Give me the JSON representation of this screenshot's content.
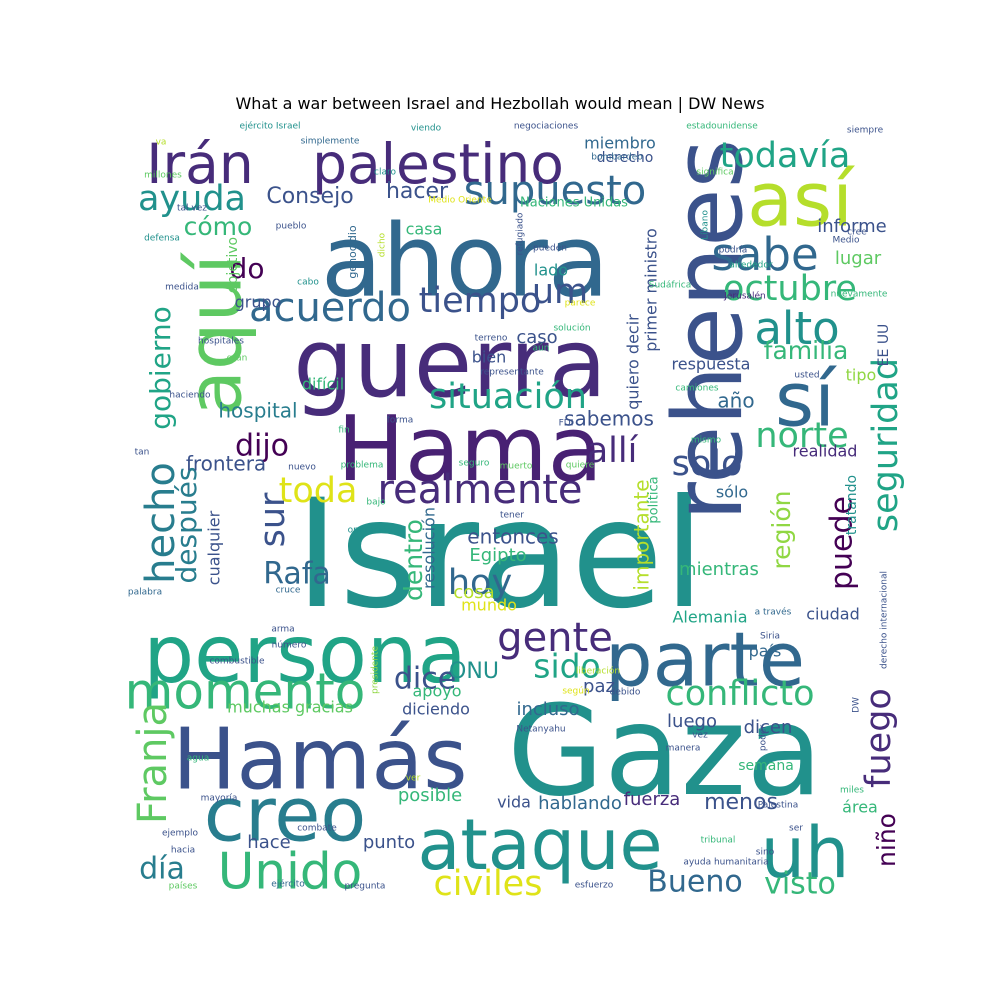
{
  "figure": {
    "title": "What a war between Israel and Hezbollah would mean | DW News"
  },
  "palette": {
    "dark_purple": "#472c7a",
    "indigo": "#3b528b",
    "steel_blue": "#31688e",
    "teal_blue": "#287d8e",
    "teal": "#21918c",
    "sea_green": "#20a486",
    "green": "#35b779",
    "light_green": "#5ec962",
    "lime": "#90d743",
    "yellow_green": "#b5de2b",
    "yellow": "#dfe318",
    "deep_purple": "#440154",
    "purple": "#482173"
  },
  "words": [
    {
      "text": "Israel",
      "color": "#21918c"
    },
    {
      "text": "Gaza",
      "color": "#21918c"
    },
    {
      "text": "ahora",
      "color": "#31688e"
    },
    {
      "text": "guerra",
      "color": "#472c7a"
    },
    {
      "text": "Hama",
      "color": "#482173"
    },
    {
      "text": "rehenes",
      "color": "#3b528b"
    },
    {
      "text": "persona",
      "color": "#20a486"
    },
    {
      "text": "Hamás",
      "color": "#3b528b"
    },
    {
      "text": "parte",
      "color": "#31688e"
    },
    {
      "text": "así",
      "color": "#b5de2b"
    },
    {
      "text": "aquí",
      "color": "#5ec962"
    },
    {
      "text": "sí",
      "color": "#31688e"
    },
    {
      "text": "creo",
      "color": "#287d8e"
    },
    {
      "text": "ataque",
      "color": "#21918c"
    },
    {
      "text": "uh",
      "color": "#21918c"
    },
    {
      "text": "palestino",
      "color": "#472c7a"
    },
    {
      "text": "Irán",
      "color": "#472c7a"
    },
    {
      "text": "momento",
      "color": "#35b779"
    },
    {
      "text": "Unido",
      "color": "#35b779"
    },
    {
      "text": "realmente",
      "color": "#472c7a"
    },
    {
      "text": "sabe",
      "color": "#31688e"
    },
    {
      "text": "alto",
      "color": "#21918c"
    },
    {
      "text": "supuesto",
      "color": "#31688e"
    },
    {
      "text": "acuerdo",
      "color": "#31688e"
    },
    {
      "text": "situación",
      "color": "#20a486"
    },
    {
      "text": "gente",
      "color": "#472c7a"
    },
    {
      "text": "conflicto",
      "color": "#35b779"
    },
    {
      "text": "civiles",
      "color": "#dfe318"
    },
    {
      "text": "ayuda",
      "color": "#21918c"
    },
    {
      "text": "todavía",
      "color": "#20a486"
    },
    {
      "text": "octubre",
      "color": "#35b779"
    },
    {
      "text": "tiempo",
      "color": "#3b528b"
    },
    {
      "text": "toda",
      "color": "#dfe318"
    },
    {
      "text": "sido",
      "color": "#20a486"
    },
    {
      "text": "dice",
      "color": "#3b528b"
    },
    {
      "text": "hoy",
      "color": "#31688e"
    },
    {
      "text": "Rafa",
      "color": "#31688e"
    },
    {
      "text": "allí",
      "color": "#472c7a"
    },
    {
      "text": "solo",
      "color": "#3b528b"
    },
    {
      "text": "norte",
      "color": "#35b779"
    },
    {
      "text": "familia",
      "color": "#35b779"
    },
    {
      "text": "dijo",
      "color": "#440154"
    },
    {
      "text": "visto",
      "color": "#35b779"
    },
    {
      "text": "Bueno",
      "color": "#31688e"
    },
    {
      "text": "día",
      "color": "#287d8e"
    },
    {
      "text": "Franja",
      "color": "#5ec962"
    },
    {
      "text": "hecho",
      "color": "#287d8e"
    },
    {
      "text": "gobierno",
      "color": "#20a486"
    },
    {
      "text": "después",
      "color": "#287d8e"
    },
    {
      "text": "sur",
      "color": "#3b528b"
    },
    {
      "text": "fuego",
      "color": "#472c7a"
    },
    {
      "text": "seguridad",
      "color": "#20a486"
    },
    {
      "text": "puede",
      "color": "#440154"
    },
    {
      "text": "región",
      "color": "#90d743"
    },
    {
      "text": "niño",
      "color": "#440154"
    },
    {
      "text": "Consejo",
      "color": "#3b528b"
    },
    {
      "text": "hacer",
      "color": "#3b528b"
    },
    {
      "text": "cómo",
      "color": "#35b779"
    },
    {
      "text": "do",
      "color": "#440154"
    },
    {
      "text": "um",
      "color": "#3b528b"
    },
    {
      "text": "entonces",
      "color": "#3b528b"
    },
    {
      "text": "hospital",
      "color": "#287d8e"
    },
    {
      "text": "ONU",
      "color": "#21918c"
    },
    {
      "text": "menos",
      "color": "#3b528b"
    },
    {
      "text": "sabemos",
      "color": "#3b528b"
    },
    {
      "text": "frontera",
      "color": "#3b528b"
    },
    {
      "text": "dentro",
      "color": "#35b779"
    },
    {
      "text": "importante",
      "color": "#b5de2b"
    },
    {
      "text": "informe",
      "color": "#3b528b"
    },
    {
      "text": "lugar",
      "color": "#5ec962"
    },
    {
      "text": "año",
      "color": "#31688e"
    },
    {
      "text": "tipo",
      "color": "#90d743"
    },
    {
      "text": "respuesta",
      "color": "#3b528b"
    },
    {
      "text": "realidad",
      "color": "#472c7a"
    },
    {
      "text": "sólo",
      "color": "#31688e"
    },
    {
      "text": "mientras",
      "color": "#35b779"
    },
    {
      "text": "ciudad",
      "color": "#3b528b"
    },
    {
      "text": "país",
      "color": "#31688e"
    },
    {
      "text": "Alemania",
      "color": "#20a486"
    },
    {
      "text": "paz",
      "color": "#3b528b"
    },
    {
      "text": "incluso",
      "color": "#31688e"
    },
    {
      "text": "luego",
      "color": "#3b528b"
    },
    {
      "text": "dicen",
      "color": "#3b528b"
    },
    {
      "text": "fuerza",
      "color": "#472c7a"
    },
    {
      "text": "hablando",
      "color": "#31688e"
    },
    {
      "text": "vida",
      "color": "#3b528b"
    },
    {
      "text": "posible",
      "color": "#35b779"
    },
    {
      "text": "punto",
      "color": "#3b528b"
    },
    {
      "text": "hace",
      "color": "#3b528b"
    },
    {
      "text": "área",
      "color": "#35b779"
    },
    {
      "text": "semana",
      "color": "#35b779"
    },
    {
      "text": "muchas gracias",
      "color": "#5ec962"
    },
    {
      "text": "apoyo",
      "color": "#35b779"
    },
    {
      "text": "diciendo",
      "color": "#3b528b"
    },
    {
      "text": "Egipto",
      "color": "#35b779"
    },
    {
      "text": "cosa",
      "color": "#b5de2b"
    },
    {
      "text": "mundo",
      "color": "#dfe318"
    },
    {
      "text": "caso",
      "color": "#3b528b"
    },
    {
      "text": "bien",
      "color": "#3b528b"
    },
    {
      "text": "lado",
      "color": "#21918c"
    },
    {
      "text": "grupo",
      "color": "#3b528b"
    },
    {
      "text": "difícil",
      "color": "#35b779"
    },
    {
      "text": "casa",
      "color": "#35b779"
    },
    {
      "text": "miembro",
      "color": "#31688e"
    },
    {
      "text": "derecho",
      "color": "#3b528b"
    },
    {
      "text": "Naciones Unidas",
      "color": "#35b779"
    },
    {
      "text": "cualquier",
      "color": "#3b528b"
    },
    {
      "text": "resolución",
      "color": "#31688e"
    },
    {
      "text": "primer ministro",
      "color": "#3b528b"
    },
    {
      "text": "quiero decir",
      "color": "#3b528b"
    },
    {
      "text": "política",
      "color": "#35b779"
    },
    {
      "text": "objetivo",
      "color": "#5ec962"
    },
    {
      "text": "genocidio",
      "color": "#31688e"
    },
    {
      "text": "tratando",
      "color": "#21918c"
    },
    {
      "text": "EE UU",
      "color": "#3b528b"
    },
    {
      "text": "ejército Israel",
      "color": "#21918c"
    },
    {
      "text": "viendo",
      "color": "#21918c"
    },
    {
      "text": "negociaciones",
      "color": "#3b528b"
    },
    {
      "text": "estadounidense",
      "color": "#35b779"
    },
    {
      "text": "siempre",
      "color": "#3b528b"
    },
    {
      "text": "simplemente",
      "color": "#31688e"
    },
    {
      "text": "bombardeo",
      "color": "#31688e"
    },
    {
      "text": "significa",
      "color": "#5ec962"
    },
    {
      "text": "millones",
      "color": "#5ec962"
    },
    {
      "text": "claro",
      "color": "#21918c"
    },
    {
      "text": "Medio Oriente",
      "color": "#dfe318"
    },
    {
      "text": "tal vez",
      "color": "#3b528b"
    },
    {
      "text": "pueblo",
      "color": "#3b528b"
    },
    {
      "text": "dicho",
      "color": "#b5de2b"
    },
    {
      "text": "refugiado",
      "color": "#3b528b"
    },
    {
      "text": "pueden",
      "color": "#3b528b"
    },
    {
      "text": "Líbano",
      "color": "#21918c"
    },
    {
      "text": "podría",
      "color": "#3b528b"
    },
    {
      "text": "cree",
      "color": "#3b528b"
    },
    {
      "text": "Medio",
      "color": "#3b528b"
    },
    {
      "text": "defensa",
      "color": "#21918c"
    },
    {
      "text": "alrededor",
      "color": "#20a486"
    },
    {
      "text": "Sudáfrica",
      "color": "#35b779"
    },
    {
      "text": "medida",
      "color": "#3b528b"
    },
    {
      "text": "cabo",
      "color": "#21918c"
    },
    {
      "text": "Jerusalén",
      "color": "#472c7a"
    },
    {
      "text": "nuevamente",
      "color": "#35b779"
    },
    {
      "text": "parece",
      "color": "#dfe318"
    },
    {
      "text": "solución",
      "color": "#35b779"
    },
    {
      "text": "hospitales",
      "color": "#3b528b"
    },
    {
      "text": "terreno",
      "color": "#3b528b"
    },
    {
      "text": "gran",
      "color": "#5ec962"
    },
    {
      "text": "aún",
      "color": "#35b779"
    },
    {
      "text": "representante",
      "color": "#3b528b"
    },
    {
      "text": "usted",
      "color": "#3b528b"
    },
    {
      "text": "haciendo",
      "color": "#3b528b"
    },
    {
      "text": "camiones",
      "color": "#35b779"
    },
    {
      "text": "forma",
      "color": "#3b528b"
    },
    {
      "text": "FDI",
      "color": "#3b528b"
    },
    {
      "text": "fin",
      "color": "#35b779"
    },
    {
      "text": "mismo",
      "color": "#35b779"
    },
    {
      "text": "tan",
      "color": "#3b528b"
    },
    {
      "text": "nuevo",
      "color": "#3b528b"
    },
    {
      "text": "problema",
      "color": "#35b779"
    },
    {
      "text": "seguro",
      "color": "#35b779"
    },
    {
      "text": "muerto",
      "color": "#5ec962"
    },
    {
      "text": "quiere",
      "color": "#5ec962"
    },
    {
      "text": "bajo",
      "color": "#35b779"
    },
    {
      "text": "tener",
      "color": "#3b528b"
    },
    {
      "text": "operación",
      "color": "#21918c"
    },
    {
      "text": "palabra",
      "color": "#31688e"
    },
    {
      "text": "cruce",
      "color": "#31688e"
    },
    {
      "text": "a través",
      "color": "#31688e"
    },
    {
      "text": "derecho internacional",
      "color": "#3b528b"
    },
    {
      "text": "arma",
      "color": "#3b528b"
    },
    {
      "text": "presidente",
      "color": "#90d743"
    },
    {
      "text": "número",
      "color": "#3b528b"
    },
    {
      "text": "Siria",
      "color": "#3b528b"
    },
    {
      "text": "combustible",
      "color": "#3b528b"
    },
    {
      "text": "liberación",
      "color": "#b5de2b"
    },
    {
      "text": "según",
      "color": "#dfe318"
    },
    {
      "text": "debido",
      "color": "#3b528b"
    },
    {
      "text": "Netanyahu",
      "color": "#3b528b"
    },
    {
      "text": "poder",
      "color": "#3b528b"
    },
    {
      "text": "vez",
      "color": "#3b528b"
    },
    {
      "text": "DW",
      "color": "#3b528b"
    },
    {
      "text": "agua",
      "color": "#35b779"
    },
    {
      "text": "manera",
      "color": "#3b528b"
    },
    {
      "text": "ver",
      "color": "#b5de2b"
    },
    {
      "text": "mayoría",
      "color": "#3b528b"
    },
    {
      "text": "miles",
      "color": "#35b779"
    },
    {
      "text": "Palestina",
      "color": "#3b528b"
    },
    {
      "text": "ejemplo",
      "color": "#3b528b"
    },
    {
      "text": "combate",
      "color": "#3b528b"
    },
    {
      "text": "ser",
      "color": "#3b528b"
    },
    {
      "text": "tribunal",
      "color": "#35b779"
    },
    {
      "text": "hacia",
      "color": "#3b528b"
    },
    {
      "text": "sino",
      "color": "#3b528b"
    },
    {
      "text": "ayuda humanitaria",
      "color": "#3b528b"
    },
    {
      "text": "países",
      "color": "#5ec962"
    },
    {
      "text": "ejército",
      "color": "#31688e"
    },
    {
      "text": "pregunta",
      "color": "#3b528b"
    },
    {
      "text": "esfuerzo",
      "color": "#3b528b"
    },
    {
      "text": "va",
      "color": "#b5de2b"
    }
  ]
}
